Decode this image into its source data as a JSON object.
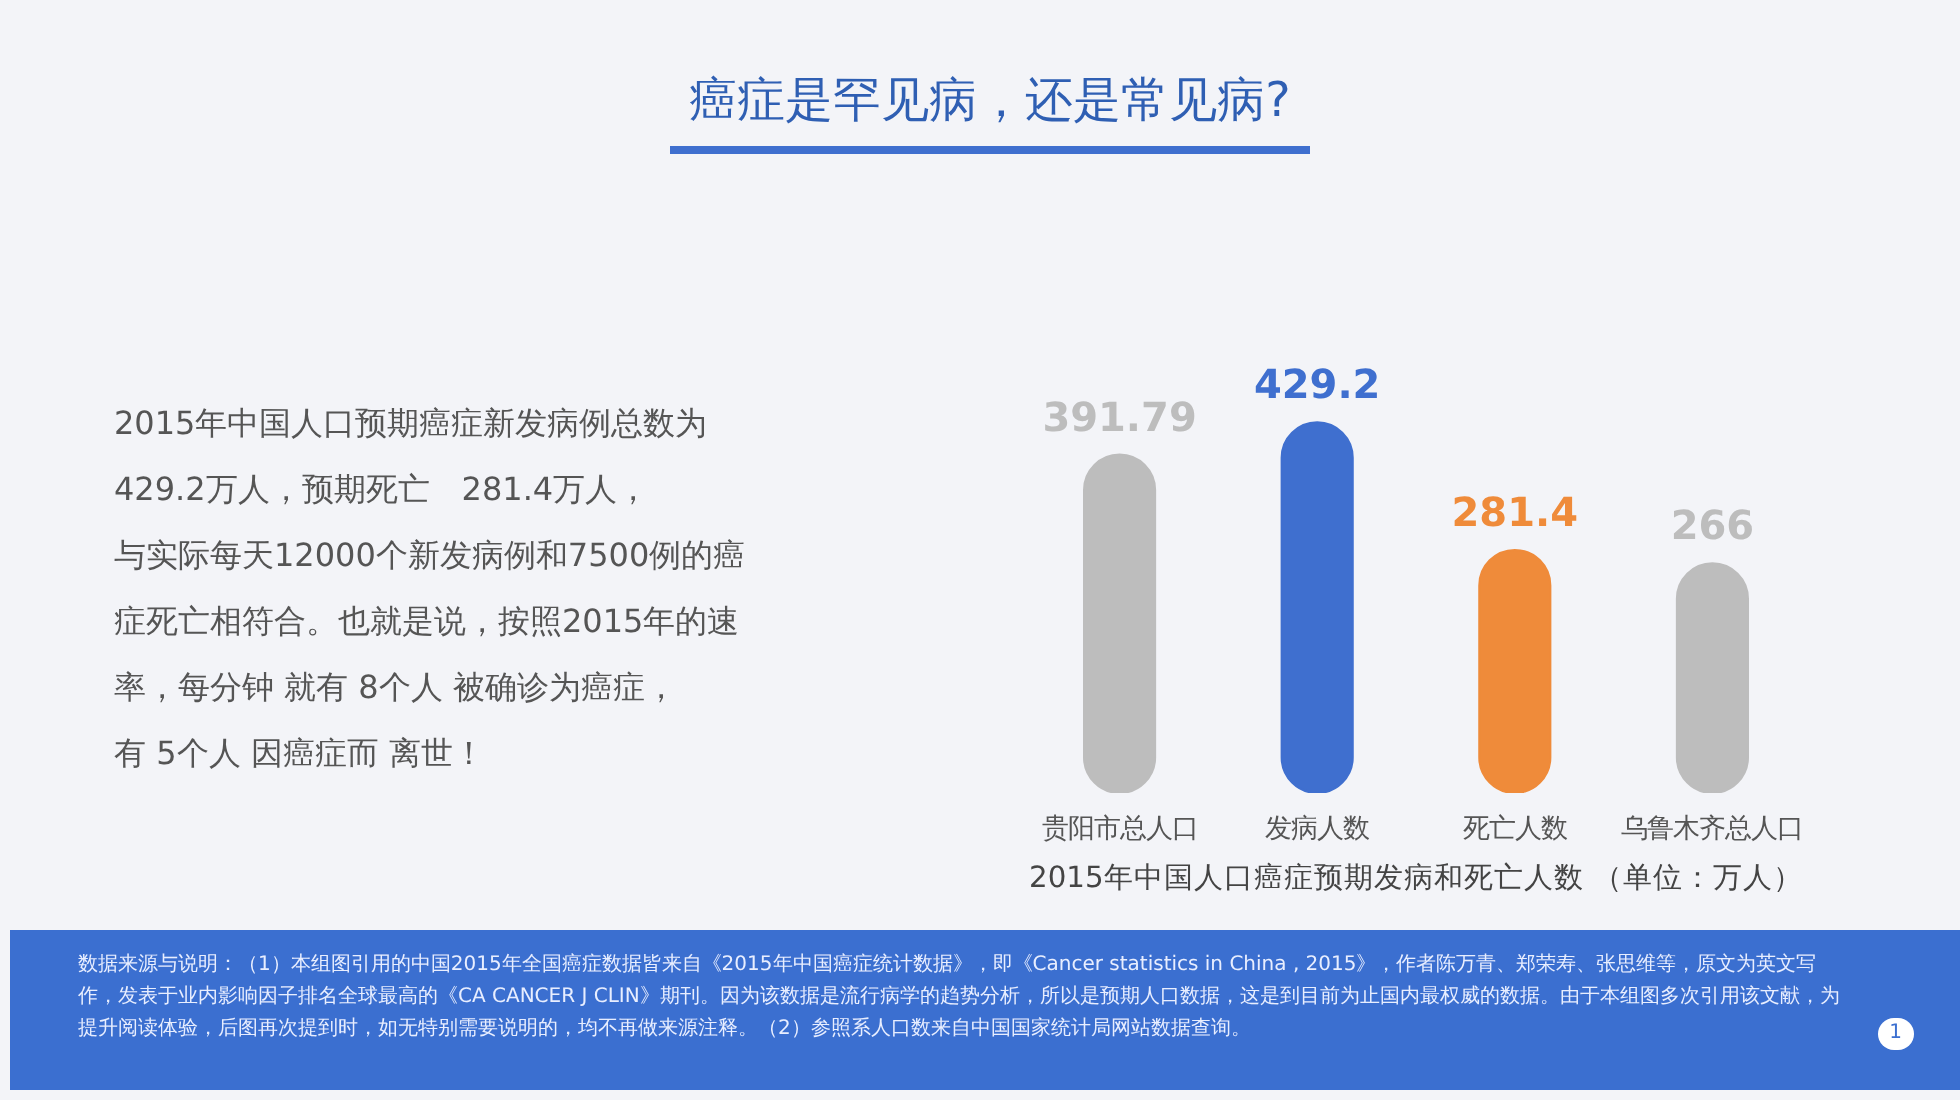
{
  "chart_data": {
    "type": "bar",
    "title": "癌症是罕见病，还是常见病?",
    "xlabel": "2015年中国人口癌症预期发病和死亡人数 （单位：万人）",
    "categories": [
      "贵阳市总人口",
      "发病人数",
      "死亡人数",
      "乌鲁木齐总人口"
    ],
    "values": [
      391.79,
      429.2,
      281.4,
      266
    ],
    "colors": [
      "#bdbdbd",
      "#3f6fcf",
      "#ef8b3a",
      "#bdbdbd"
    ],
    "data_labels": true,
    "grid": false,
    "tick_labels": "x",
    "annotations": [
      "2015年中国人口预期癌症新发病例总数为",
      "429.2万人，预期死亡　281.4万人，",
      "与实际每天12000个新发病例和7500例的癌",
      "症死亡相符合。也就是说，按照2015年的速",
      "率，每分钟 就有 8个人 被确诊为癌症，",
      "有 5个人 因癌症而 离世！",
      "数据来源与说明：（1）本组图引用的中国2015年全国癌症数据皆来自《2015年中国癌症统计数据》，即《Cancer statistics in China , 2015》，作者陈万青、郑荣寿、张思维等，原文为英文写作，发表于业内影响因子排名全球最高的《CA CANCER J CLIN》期刊。因为该数据是流行病学的趋势分析，所以是预期人口数据，这是到目前为止国内最权威的数据。由于本组图多次引用该文献，为提升阅读体验，后图再次提到时，如无特别需要说明的，均不再做来源注释。（2）参照系人口数来自中国国家统计局网站数据查询。",
      "1"
    ]
  }
}
